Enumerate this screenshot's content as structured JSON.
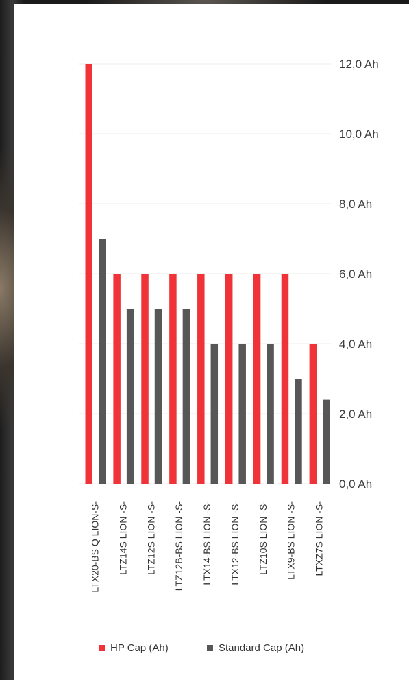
{
  "chart_data": {
    "type": "bar",
    "categories": [
      "LTX20-BS Q LION-S-",
      "LTZ14S LION -S-",
      "LTZ12S LION -S-",
      "LTZ12B-BS LION -S-",
      "LTX14-BS LION -S-",
      "LTX12-BS LION -S-",
      "LTZ10S LION -S-",
      "LTX9-BS LION -S-",
      "LTXZ7S LION -S-"
    ],
    "series": [
      {
        "name": "HP Cap (Ah)",
        "color": "#ef3338",
        "values": [
          12,
          6,
          6,
          6,
          6,
          6,
          6,
          6,
          4
        ]
      },
      {
        "name": "Standard Cap (Ah)",
        "color": "#575757",
        "values": [
          7,
          5,
          5,
          5,
          4,
          4,
          4,
          3,
          2.4
        ]
      }
    ],
    "y_ticks": [
      "0,0 Ah",
      "2,0 Ah",
      "4,0 Ah",
      "6,0 Ah",
      "8,0 Ah",
      "10,0 Ah",
      "12,0 Ah"
    ],
    "ylim": [
      0,
      12
    ],
    "y_axis_position": "right",
    "grid": true,
    "legend_position": "bottom",
    "title": "",
    "xlabel": "",
    "ylabel": ""
  }
}
